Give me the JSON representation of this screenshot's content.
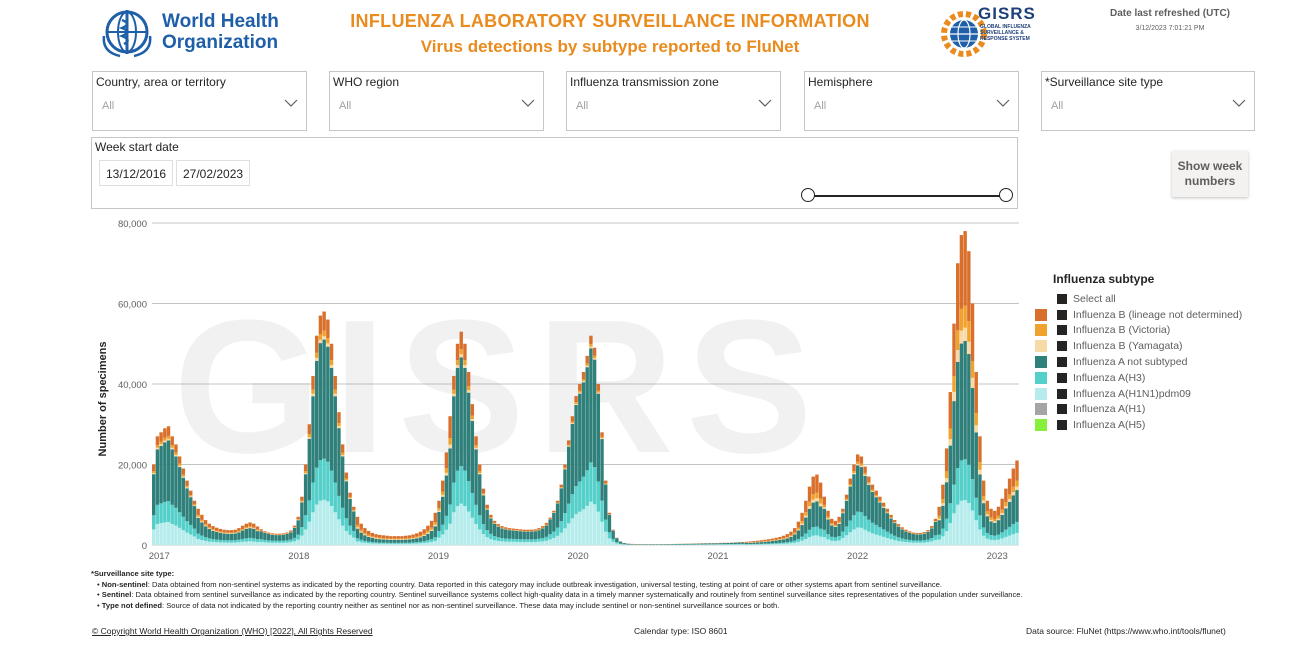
{
  "header": {
    "who_logo_line1": "World Health",
    "who_logo_line2": "Organization",
    "title_line1": "INFLUENZA LABORATORY SURVEILLANCE INFORMATION",
    "title_line2": "Virus detections by subtype reported to FluNet",
    "gisrs_logo_text": "GISRS",
    "gisrs_logo_subtext": "GLOBAL INFLUENZA SURVEILLANCE & RESPONSE SYSTEM",
    "refresh_label": "Date last refreshed (UTC)",
    "refresh_value": "3/12/2023 7:01:21 PM"
  },
  "filters": [
    {
      "label": "Country, area or territory",
      "value": "All"
    },
    {
      "label": "WHO region",
      "value": "All"
    },
    {
      "label": "Influenza transmission zone",
      "value": "All"
    },
    {
      "label": "Hemisphere",
      "value": "All"
    },
    {
      "label": "*Surveillance site type",
      "value": "All"
    }
  ],
  "date_filter": {
    "label": "Week start date",
    "start": "13/12/2016",
    "end": "27/02/2023"
  },
  "show_week_button": "Show week numbers",
  "colors": {
    "b_lineage_nd": "#d8702c",
    "b_victoria": "#f0a22f",
    "b_yamagata": "#f8d9a8",
    "a_not_subtyped": "#2f7f7a",
    "a_h3": "#55cfc9",
    "a_h1n1pdm09": "#b6ecec",
    "a_h1": "#a5a5a5",
    "a_h5": "#86f03c"
  },
  "legend": {
    "title": "Influenza subtype",
    "select_all": "Select all",
    "items": [
      {
        "label": "Influenza B (lineage not determined)",
        "color": "#d8702c"
      },
      {
        "label": "Influenza B (Victoria)",
        "color": "#f0a22f"
      },
      {
        "label": "Influenza B (Yamagata)",
        "color": "#f8d9a8"
      },
      {
        "label": "Influenza A not subtyped",
        "color": "#2f7f7a"
      },
      {
        "label": "Influenza A(H3)",
        "color": "#55cfc9"
      },
      {
        "label": "Influenza A(H1N1)pdm09",
        "color": "#b6ecec"
      },
      {
        "label": "Influenza A(H1)",
        "color": "#a5a5a5"
      },
      {
        "label": "Influenza A(H5)",
        "color": "#86f03c"
      }
    ]
  },
  "chart_data": {
    "type": "bar",
    "stacked": true,
    "ylabel": "Number of specimens",
    "ylim": [
      0,
      80000
    ],
    "yticks": [
      0,
      20000,
      40000,
      60000,
      80000
    ],
    "ytick_labels": [
      "0",
      "20,000",
      "40,000",
      "60,000",
      "80,000"
    ],
    "x_tick_labels": [
      "2017",
      "2018",
      "2019",
      "2020",
      "2021",
      "2022",
      "2023"
    ],
    "x_range": [
      "2016-12-13",
      "2023-02-27"
    ],
    "grid": true,
    "watermark": "GISRS",
    "legend_placement": "right",
    "series_order": [
      "Influenza A(H1N1)pdm09",
      "Influenza A(H3)",
      "Influenza A not subtyped",
      "Influenza B (Yamagata)",
      "Influenza B (Victoria)",
      "Influenza B (lineage not determined)"
    ],
    "weekly_totals": [
      20000,
      27000,
      28000,
      29000,
      29500,
      27000,
      25000,
      22000,
      19000,
      16000,
      13500,
      11000,
      9000,
      7500,
      6200,
      5300,
      4700,
      4300,
      4000,
      3800,
      3700,
      3700,
      3800,
      4200,
      4800,
      5300,
      5600,
      5300,
      4600,
      3900,
      3400,
      3100,
      2900,
      2800,
      2800,
      2900,
      3100,
      3600,
      4800,
      7000,
      12000,
      20000,
      30000,
      42000,
      52000,
      57000,
      58000,
      56000,
      50000,
      42000,
      33000,
      25000,
      18000,
      13000,
      9500,
      7000,
      5300,
      4200,
      3500,
      3000,
      2700,
      2500,
      2400,
      2300,
      2200,
      2200,
      2200,
      2200,
      2300,
      2400,
      2600,
      2900,
      3300,
      3900,
      4800,
      6000,
      8000,
      11000,
      16000,
      23000,
      32000,
      42000,
      50000,
      53000,
      50000,
      43000,
      35000,
      27000,
      20000,
      14000,
      10000,
      7500,
      6000,
      5200,
      4700,
      4400,
      4200,
      4100,
      4000,
      3900,
      3800,
      3800,
      3800,
      3900,
      4200,
      4700,
      5500,
      6800,
      8500,
      11000,
      15000,
      20000,
      26000,
      32000,
      37000,
      40000,
      43000,
      47000,
      52000,
      49000,
      40000,
      28000,
      16000,
      8000,
      3800,
      1800,
      900,
      500,
      350,
      280,
      250,
      240,
      230,
      220,
      220,
      220,
      220,
      230,
      240,
      250,
      260,
      280,
      300,
      320,
      340,
      360,
      380,
      400,
      420,
      440,
      460,
      480,
      500,
      520,
      550,
      580,
      620,
      660,
      700,
      750,
      800,
      880,
      970,
      1070,
      1180,
      1300,
      1450,
      1600,
      1800,
      2000,
      2300,
      2700,
      3300,
      4200,
      5800,
      8000,
      11000,
      14500,
      17000,
      17500,
      15500,
      12000,
      8500,
      6500,
      6000,
      7000,
      9000,
      12500,
      16500,
      20000,
      22500,
      22000,
      19500,
      17000,
      15000,
      13500,
      12000,
      10500,
      9000,
      7500,
      6200,
      5200,
      4400,
      3800,
      3400,
      3100,
      3000,
      3000,
      3200,
      3700,
      4700,
      6500,
      9500,
      15000,
      24000,
      38000,
      55000,
      70000,
      77000,
      78000,
      73000,
      60000,
      43000,
      27000,
      16000,
      11000,
      9000,
      8500,
      9500,
      11500,
      14000,
      16500,
      19000,
      21000
    ]
  },
  "notes": {
    "heading": "*Surveillance site type:",
    "non_sentinel_term": "Non-sentinel",
    "non_sentinel_text": ": Data obtained from non-sentinel systems as indicated by the reporting country. Data reported in this category may include outbreak investigation, universal testing, testing at point of care or other systems apart from sentinel surveillance.",
    "sentinel_term": "Sentinel",
    "sentinel_text": ": Data obtained from sentinel surveillance as indicated by the reporting country. Sentinel surveillance systems collect high-quality data in a timely manner systematically and routinely from sentinel surveillance sites representatives of the population under surveillance.",
    "type_nd_term": "Type not defined",
    "type_nd_text": ": Source of data not indicated by the reporting country neither as sentinel nor as non-sentinel surveillance. These data may include sentinel or non-sentinel surveillance sources or both."
  },
  "footer": {
    "copyright": "© Copyright World Health Organization (WHO) [2022], All Rights Reserved",
    "calendar": "Calendar type: ISO 8601",
    "source": "Data source: FluNet (https://www.who.int/tools/flunet)"
  }
}
